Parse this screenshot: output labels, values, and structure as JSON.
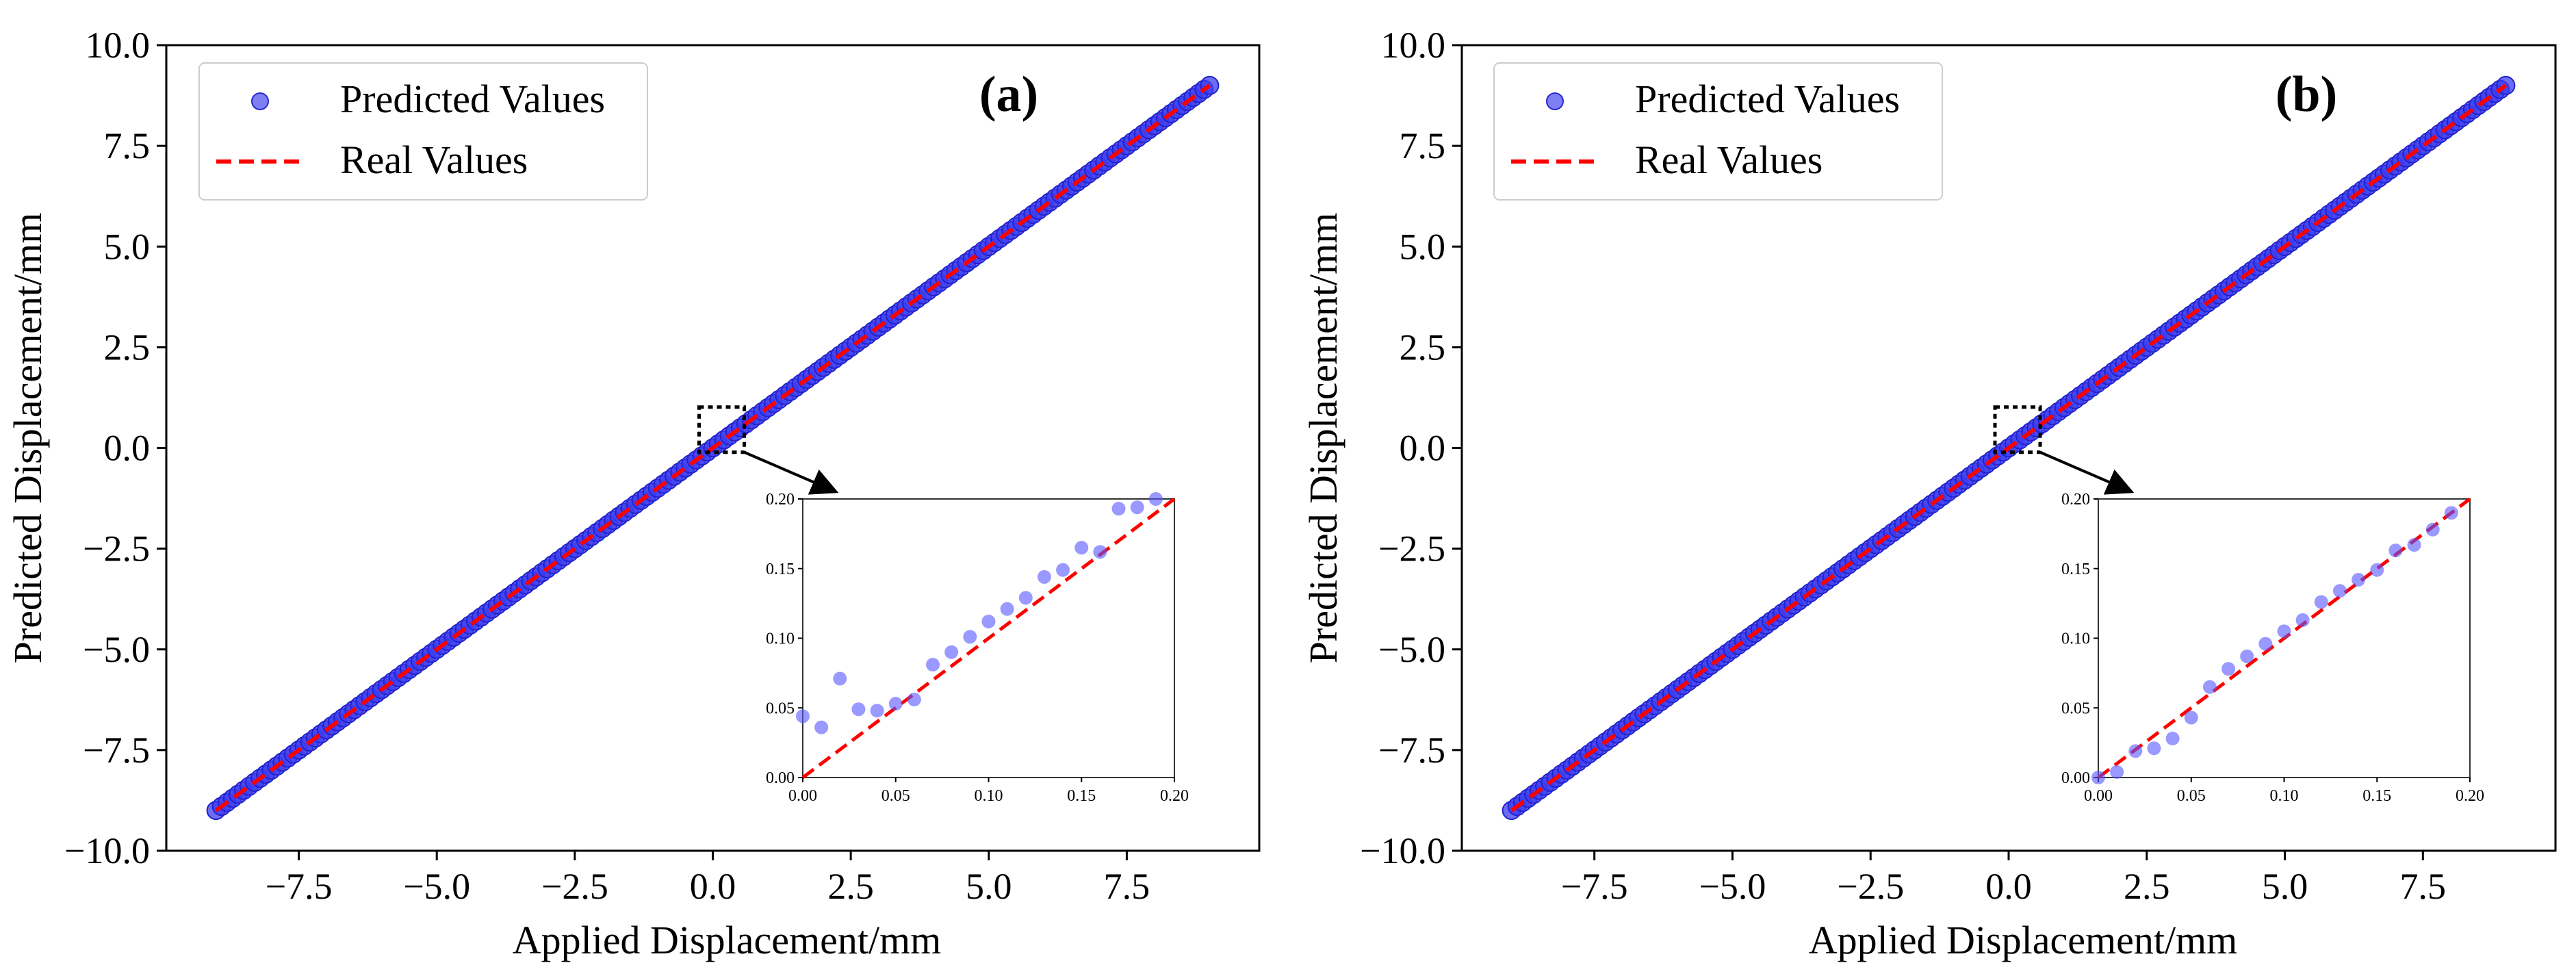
{
  "chart_data": [
    {
      "id": "a",
      "type": "scatter",
      "panel_label": "(a)",
      "xlabel": "Applied Displacement/mm",
      "ylabel": "Predicted Displacement/mm",
      "xlim": [
        -9.9,
        9.9
      ],
      "ylim": [
        -10.0,
        10.0
      ],
      "xticks": [
        -7.5,
        -5.0,
        -2.5,
        0.0,
        2.5,
        5.0,
        7.5
      ],
      "xtick_labels": [
        "−7.5",
        "−5.0",
        "−2.5",
        "0.0",
        "2.5",
        "5.0",
        "7.5"
      ],
      "yticks": [
        -10.0,
        -7.5,
        -5.0,
        -2.5,
        0.0,
        2.5,
        5.0,
        7.5,
        10.0
      ],
      "ytick_labels": [
        "−10.0",
        "−7.5",
        "−5.0",
        "−2.5",
        "0.0",
        "2.5",
        "5.0",
        "7.5",
        "10.0"
      ],
      "legend": {
        "location": "top-left",
        "entries": [
          "Predicted Values",
          "Real Values"
        ]
      },
      "series": [
        {
          "name": "Predicted Values",
          "kind": "scatter",
          "color": "#3b3bf0",
          "x_range": [
            -9.0,
            9.0
          ],
          "y_equals_x": true,
          "count": 181
        },
        {
          "name": "Real Values",
          "kind": "dashed-line",
          "color": "#ff0000",
          "x": [
            -9.0,
            9.0
          ],
          "y": [
            -9.0,
            9.0
          ]
        }
      ],
      "zoom_box": {
        "x": [
          0.0,
          0.2
        ],
        "y": [
          0.0,
          0.2
        ]
      },
      "inset": {
        "xlim": [
          0.0,
          0.2
        ],
        "ylim": [
          0.0,
          0.2
        ],
        "xticks": [
          0.0,
          0.05,
          0.1,
          0.15,
          0.2
        ],
        "xtick_labels": [
          "0.00",
          "0.05",
          "0.10",
          "0.15",
          "0.20"
        ],
        "yticks": [
          0.0,
          0.05,
          0.1,
          0.15,
          0.2
        ],
        "ytick_labels": [
          "0.00",
          "0.05",
          "0.10",
          "0.15",
          "0.20"
        ],
        "points": [
          [
            0.0,
            0.044
          ],
          [
            0.01,
            0.036
          ],
          [
            0.02,
            0.071
          ],
          [
            0.03,
            0.049
          ],
          [
            0.04,
            0.048
          ],
          [
            0.05,
            0.053
          ],
          [
            0.06,
            0.056
          ],
          [
            0.07,
            0.081
          ],
          [
            0.08,
            0.09
          ],
          [
            0.09,
            0.101
          ],
          [
            0.1,
            0.112
          ],
          [
            0.11,
            0.121
          ],
          [
            0.12,
            0.129
          ],
          [
            0.13,
            0.144
          ],
          [
            0.14,
            0.149
          ],
          [
            0.15,
            0.165
          ],
          [
            0.16,
            0.162
          ],
          [
            0.17,
            0.193
          ],
          [
            0.18,
            0.194
          ],
          [
            0.19,
            0.2
          ]
        ]
      }
    },
    {
      "id": "b",
      "type": "scatter",
      "panel_label": "(b)",
      "xlabel": "Applied Displacement/mm",
      "ylabel": "Predicted Displacement/mm",
      "xlim": [
        -9.9,
        9.9
      ],
      "ylim": [
        -10.0,
        10.0
      ],
      "xticks": [
        -7.5,
        -5.0,
        -2.5,
        0.0,
        2.5,
        5.0,
        7.5
      ],
      "xtick_labels": [
        "−7.5",
        "−5.0",
        "−2.5",
        "0.0",
        "2.5",
        "5.0",
        "7.5"
      ],
      "yticks": [
        -10.0,
        -7.5,
        -5.0,
        -2.5,
        0.0,
        2.5,
        5.0,
        7.5,
        10.0
      ],
      "ytick_labels": [
        "−10.0",
        "−7.5",
        "−5.0",
        "−2.5",
        "0.0",
        "2.5",
        "5.0",
        "7.5",
        "10.0"
      ],
      "legend": {
        "location": "top-left",
        "entries": [
          "Predicted Values",
          "Real Values"
        ]
      },
      "series": [
        {
          "name": "Predicted Values",
          "kind": "scatter",
          "color": "#3b3bf0",
          "x_range": [
            -9.0,
            9.0
          ],
          "y_equals_x": true,
          "count": 181
        },
        {
          "name": "Real Values",
          "kind": "dashed-line",
          "color": "#ff0000",
          "x": [
            -9.0,
            9.0
          ],
          "y": [
            -9.0,
            9.0
          ]
        }
      ],
      "zoom_box": {
        "x": [
          0.0,
          0.2
        ],
        "y": [
          0.0,
          0.2
        ]
      },
      "inset": {
        "xlim": [
          0.0,
          0.2
        ],
        "ylim": [
          0.0,
          0.2
        ],
        "xticks": [
          0.0,
          0.05,
          0.1,
          0.15,
          0.2
        ],
        "xtick_labels": [
          "0.00",
          "0.05",
          "0.10",
          "0.15",
          "0.20"
        ],
        "yticks": [
          0.0,
          0.05,
          0.1,
          0.15,
          0.2
        ],
        "ytick_labels": [
          "0.00",
          "0.05",
          "0.10",
          "0.15",
          "0.20"
        ],
        "points": [
          [
            0.0,
            0.0
          ],
          [
            0.01,
            0.004
          ],
          [
            0.02,
            0.019
          ],
          [
            0.03,
            0.021
          ],
          [
            0.04,
            0.028
          ],
          [
            0.05,
            0.043
          ],
          [
            0.06,
            0.065
          ],
          [
            0.07,
            0.078
          ],
          [
            0.08,
            0.087
          ],
          [
            0.09,
            0.096
          ],
          [
            0.1,
            0.105
          ],
          [
            0.11,
            0.113
          ],
          [
            0.12,
            0.126
          ],
          [
            0.13,
            0.134
          ],
          [
            0.14,
            0.142
          ],
          [
            0.15,
            0.149
          ],
          [
            0.16,
            0.163
          ],
          [
            0.17,
            0.167
          ],
          [
            0.18,
            0.178
          ],
          [
            0.19,
            0.19
          ]
        ]
      }
    }
  ]
}
